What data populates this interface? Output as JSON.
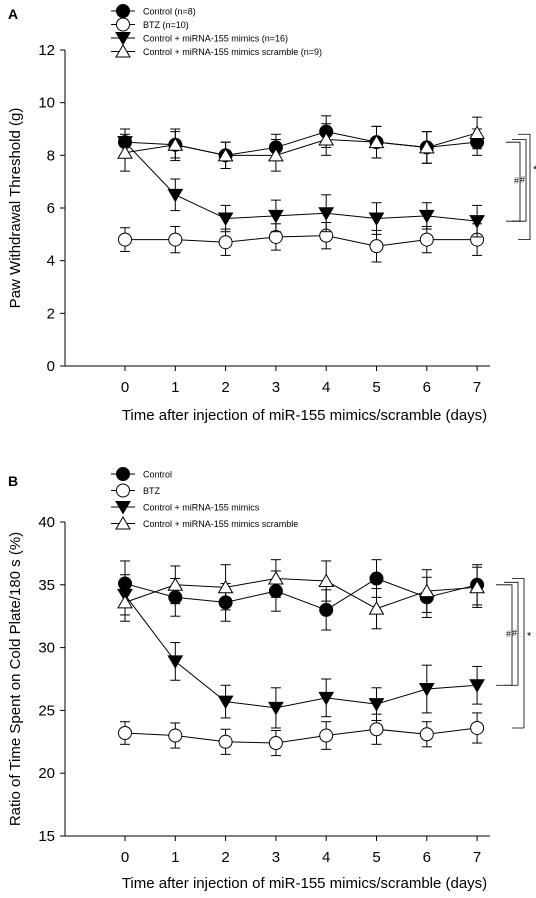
{
  "chart_data": [
    {
      "panel": "A",
      "type": "line",
      "xlabel": "Time after injection of miR-155 mimics/scramble (days)",
      "ylabel": "Paw Withdrawal Threshold (g)",
      "ylim": [
        0,
        12
      ],
      "yticks": [
        0,
        2,
        4,
        6,
        8,
        10,
        12
      ],
      "x": [
        0,
        1,
        2,
        3,
        4,
        5,
        6,
        7
      ],
      "legend": "top-left",
      "series": [
        {
          "name": "Control (n=8)",
          "marker": "circle-filled",
          "values": [
            8.5,
            8.4,
            8.0,
            8.3,
            8.9,
            8.5,
            8.3,
            8.5
          ],
          "errors": [
            0.5,
            0.5,
            0.5,
            0.5,
            0.6,
            0.6,
            0.6,
            0.5
          ]
        },
        {
          "name": "BTZ (n=10)",
          "marker": "circle-open",
          "values": [
            4.8,
            4.8,
            4.7,
            4.9,
            4.95,
            4.55,
            4.8,
            4.8
          ],
          "errors": [
            0.45,
            0.5,
            0.5,
            0.5,
            0.5,
            0.6,
            0.5,
            0.6
          ]
        },
        {
          "name": "Control + miRNA-155 mimics (n=16)",
          "marker": "triangle-down-filled",
          "values": [
            8.5,
            6.5,
            5.6,
            5.7,
            5.8,
            5.6,
            5.7,
            5.5
          ],
          "errors": [
            0.5,
            0.6,
            0.5,
            0.6,
            0.7,
            0.6,
            0.5,
            0.6
          ]
        },
        {
          "name": "Control + miRNA-155 mimics scramble (n=9)",
          "marker": "triangle-up-open",
          "values": [
            8.1,
            8.4,
            8.0,
            8.0,
            8.6,
            8.5,
            8.3,
            8.85
          ],
          "errors": [
            0.7,
            0.6,
            0.5,
            0.6,
            0.6,
            0.6,
            0.6,
            0.6
          ]
        }
      ],
      "significance": [
        "#",
        "#",
        "*"
      ]
    },
    {
      "panel": "B",
      "type": "line",
      "xlabel": "Time after injection of miR-155 mimics/scramble (days)",
      "ylabel": "Ratio of Time Spent on Cold Plate/180 s (%)",
      "ylim": [
        15,
        40
      ],
      "yticks": [
        15,
        20,
        25,
        30,
        35,
        40
      ],
      "x": [
        0,
        1,
        2,
        3,
        4,
        5,
        6,
        7
      ],
      "legend": "top-left",
      "series": [
        {
          "name": "Control",
          "marker": "circle-filled",
          "values": [
            35.1,
            34.0,
            33.6,
            34.5,
            33.0,
            35.5,
            34.0,
            35.0
          ],
          "errors": [
            1.8,
            1.5,
            1.5,
            1.6,
            1.6,
            1.5,
            1.6,
            1.6
          ]
        },
        {
          "name": "BTZ",
          "marker": "circle-open",
          "values": [
            23.2,
            23.0,
            22.5,
            22.4,
            23.0,
            23.5,
            23.1,
            23.6
          ],
          "errors": [
            0.9,
            1.0,
            1.0,
            1.0,
            1.1,
            1.2,
            1.0,
            1.2
          ]
        },
        {
          "name": "Control + miRNA-155 mimics",
          "marker": "triangle-down-filled",
          "values": [
            34.2,
            28.9,
            25.7,
            25.2,
            26.0,
            25.5,
            26.7,
            27.0
          ],
          "errors": [
            1.6,
            1.5,
            1.3,
            1.6,
            1.5,
            1.3,
            1.9,
            1.5
          ]
        },
        {
          "name": "Control + miRNA-155 mimics scramble",
          "marker": "triangle-up-open",
          "values": [
            33.6,
            35.0,
            34.8,
            35.5,
            35.3,
            33.1,
            34.5,
            34.8
          ],
          "errors": [
            1.5,
            1.5,
            1.8,
            1.5,
            1.6,
            1.6,
            1.7,
            1.6
          ]
        }
      ],
      "significance": [
        "#",
        "#",
        "*"
      ]
    }
  ]
}
